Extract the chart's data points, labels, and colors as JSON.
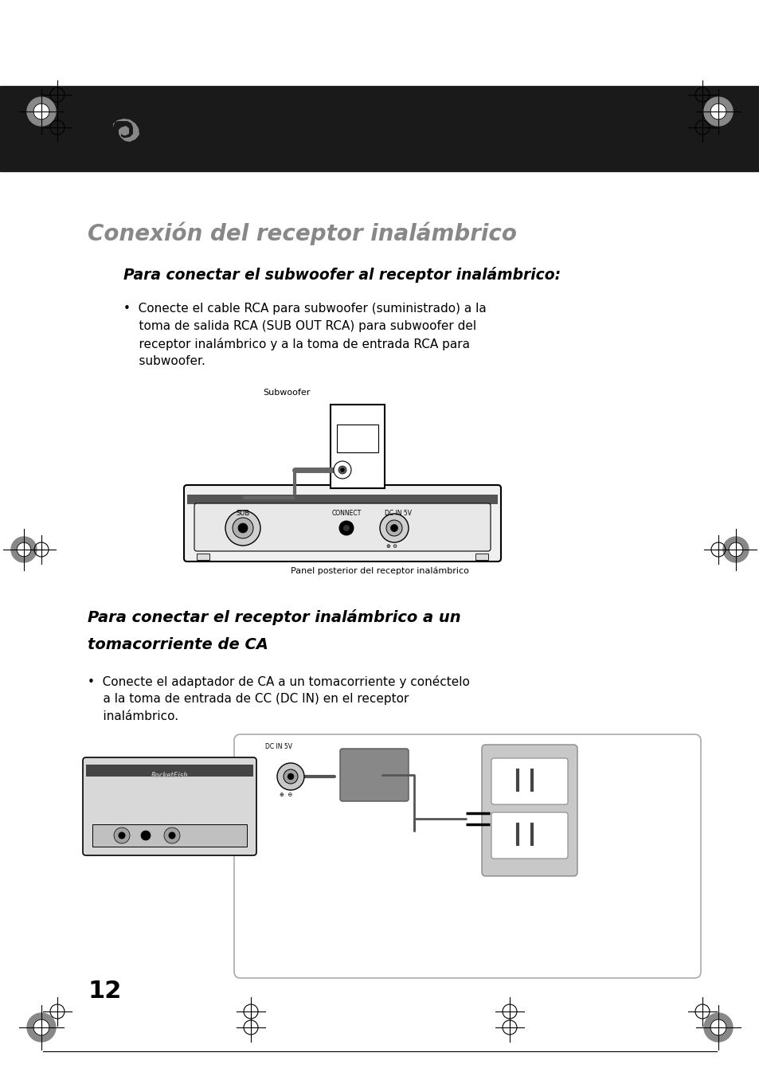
{
  "page_bg": "#ffffff",
  "header_bg": "#1a1a1a",
  "title": "Conexión del receptor inalámbrico",
  "title_color": "#888888",
  "subtitle1": "Para conectar el subwoofer al receptor inalámbrico:",
  "body1_lines": [
    "•  Conecte el cable RCA para subwoofer (suministrado) a la",
    "    toma de salida RCA (SUB OUT RCA) para subwoofer del",
    "    receptor inalámbrico y a la toma de entrada RCA para",
    "    subwoofer."
  ],
  "caption1": "Subwoofer",
  "caption2": "Panel posterior del receptor inalámbrico",
  "subtitle2_line1": "Para conectar el receptor inalámbrico a un",
  "subtitle2_line2": "tomacorriente de CA",
  "body2_lines": [
    "•  Conecte el adaptador de CA a un tomacorriente y conéctelo",
    "    a la toma de entrada de CC (DC IN) en el receptor",
    "    inalámbrico."
  ],
  "page_num": "12"
}
